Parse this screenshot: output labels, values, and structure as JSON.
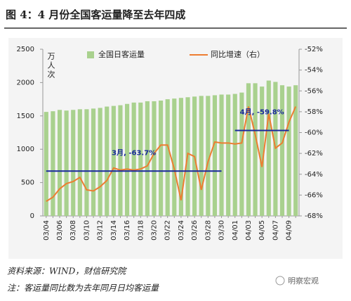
{
  "chart_data": {
    "type": "bar",
    "title": "图 4：4 月份全国客运量降至去年四成",
    "y_label": "万人次",
    "categories": [
      "03/04",
      null,
      "03/06",
      null,
      "03/08",
      null,
      "03/10",
      null,
      "03/12",
      null,
      "03/14",
      null,
      "03/16",
      null,
      "03/18",
      null,
      "03/20",
      null,
      "03/22",
      null,
      "03/24",
      null,
      "03/26",
      null,
      "03/28",
      null,
      "03/30",
      null,
      "04/01",
      null,
      "04/03",
      null,
      "04/05",
      null,
      "04/07",
      null,
      "04/09",
      null
    ],
    "series": [
      {
        "name": "全国日客运量",
        "type": "bar",
        "color": "#a9d18e",
        "values": [
          1560,
          1570,
          1590,
          1580,
          1590,
          1600,
          1600,
          1610,
          1620,
          1640,
          1650,
          1660,
          1680,
          1700,
          1700,
          1720,
          1720,
          1730,
          1750,
          1760,
          1770,
          1780,
          1790,
          1800,
          1800,
          1810,
          1820,
          1820,
          1830,
          1850,
          1990,
          1990,
          1940,
          2030,
          2010,
          1960,
          1940,
          1960
        ]
      },
      {
        "name": "同比增速（右）",
        "type": "line",
        "axis": "y2",
        "color": "#ed7d31",
        "values": [
          -66.6,
          -66.2,
          -65.4,
          -64.9,
          -64.7,
          -64.3,
          -65.5,
          -65.6,
          -65.2,
          -64.6,
          -63.4,
          -63.6,
          -63.5,
          -63.6,
          -63.5,
          -63.2,
          -62.0,
          -61.2,
          -61.2,
          -63.5,
          -66.5,
          -62.0,
          -62.3,
          -65.5,
          -62.8,
          -60.9,
          -61.0,
          -61.0,
          -61.1,
          -61.0,
          -57.5,
          -60.2,
          -63.3,
          -58.2,
          -61.5,
          -61.0,
          -59.0,
          -57.5
        ]
      }
    ],
    "ylim": [
      0,
      2500
    ],
    "yticks": [
      0,
      500,
      1000,
      1500,
      2000,
      2500
    ],
    "y2lim": [
      -68,
      -52
    ],
    "y2ticks": [
      {
        "value": -68,
        "label": "-68%"
      },
      {
        "value": -66,
        "label": "-66%"
      },
      {
        "value": -64,
        "label": "-64%"
      },
      {
        "value": -62,
        "label": "-62%"
      },
      {
        "value": -60,
        "label": "-60%"
      },
      {
        "value": -58,
        "label": "-58%"
      },
      {
        "value": -56,
        "label": "-56%"
      },
      {
        "value": -54,
        "label": "-54%"
      },
      {
        "value": -52,
        "label": "-52%"
      }
    ],
    "annotations": [
      {
        "text": "3月, -63.7%",
        "value": -63.7,
        "from": "03/04",
        "to": "03/30",
        "color": "#1a2a9c"
      },
      {
        "text": "4月, -59.8%",
        "value": -59.8,
        "from": "04/01",
        "to": "04/09",
        "color": "#1a2a9c"
      }
    ],
    "legend": "top",
    "grid": false
  },
  "footer": {
    "source": "资料来源：WIND，财信研究院",
    "note": "注：客运量同比数为去年同月日均客运量"
  },
  "watermark": "明察宏观"
}
